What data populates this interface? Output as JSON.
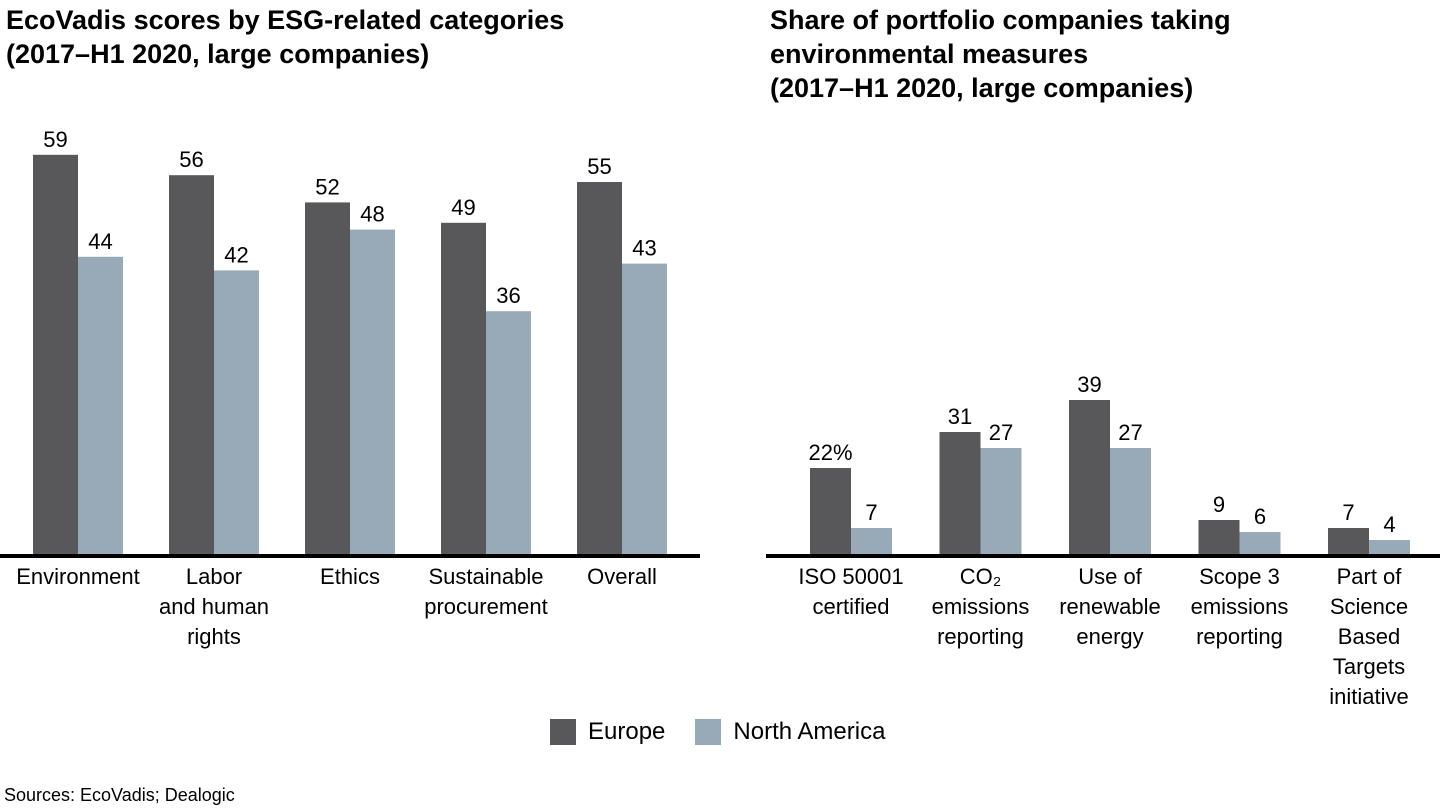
{
  "colors": {
    "europe": "#58585a",
    "north_america": "#98a9b7",
    "axis": "#000000"
  },
  "legend": [
    {
      "name": "Europe",
      "color": "#58585a"
    },
    {
      "name": "North America",
      "color": "#98a9b7"
    }
  ],
  "source": "Sources: EcoVadis; Dealogic",
  "chart_data": [
    {
      "type": "bar",
      "title": [
        "EcoVadis scores by ESG-related categories",
        "(2017–H1 2020, large companies)"
      ],
      "categories": [
        [
          "Environment"
        ],
        [
          "Labor",
          "and human",
          "rights"
        ],
        [
          "Ethics"
        ],
        [
          "Sustainable",
          "procurement"
        ],
        [
          "Overall"
        ]
      ],
      "series": [
        {
          "name": "Europe",
          "values": [
            59,
            56,
            52,
            49,
            55
          ],
          "labels": [
            "59",
            "56",
            "52",
            "49",
            "55"
          ]
        },
        {
          "name": "North America",
          "values": [
            44,
            42,
            48,
            36,
            43
          ],
          "labels": [
            "44",
            "42",
            "48",
            "36",
            "43"
          ]
        }
      ],
      "ylim": [
        0,
        60
      ]
    },
    {
      "type": "bar",
      "title": [
        "Share of portfolio companies taking",
        "environmental measures",
        "(2017–H1 2020, large companies)"
      ],
      "categories": [
        [
          "ISO 50001",
          "certified"
        ],
        [
          "CO₂",
          "emissions",
          "reporting"
        ],
        [
          "Use of",
          "renewable",
          "energy"
        ],
        [
          "Scope 3",
          "emissions",
          "reporting"
        ],
        [
          "Part of",
          "Science",
          "Based",
          "Targets",
          "initiative"
        ]
      ],
      "series": [
        {
          "name": "Europe",
          "values": [
            22,
            31,
            39,
            9,
            7
          ],
          "labels": [
            "22%",
            "31",
            "39",
            "9",
            "7"
          ]
        },
        {
          "name": "North America",
          "values": [
            7,
            27,
            27,
            6,
            4
          ],
          "labels": [
            "7",
            "27",
            "27",
            "6",
            "4"
          ]
        }
      ],
      "ylim": [
        0,
        60
      ]
    }
  ]
}
